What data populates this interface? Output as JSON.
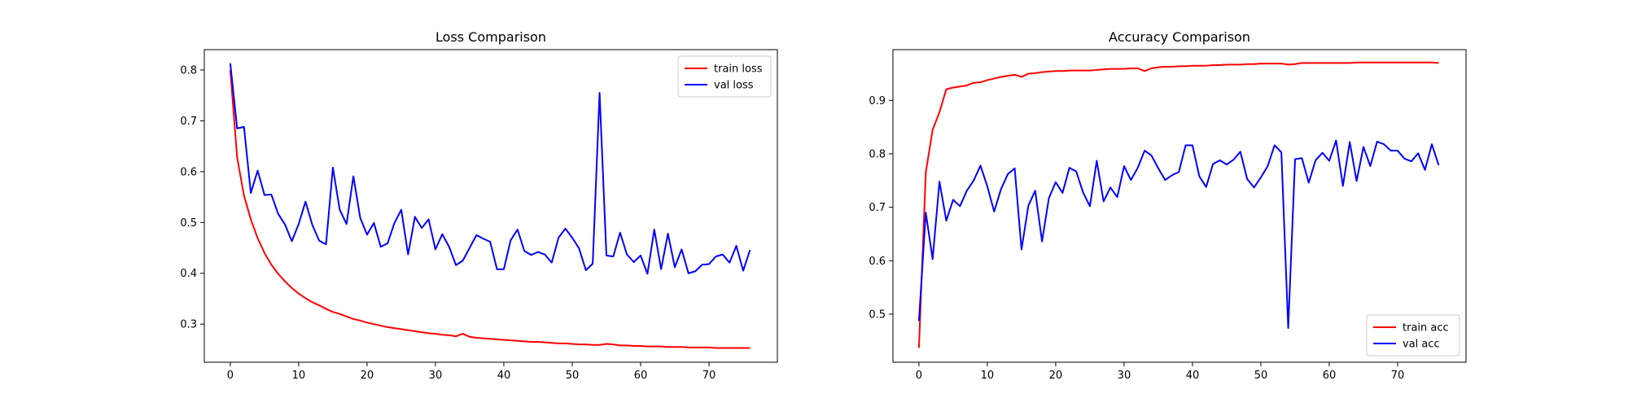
{
  "chart_data": [
    {
      "type": "line",
      "title": "Loss Comparison",
      "xlabel": "",
      "ylabel": "",
      "xlim": [
        -3.8,
        80.0
      ],
      "ylim": [
        0.225,
        0.84
      ],
      "xticks": [
        0,
        10,
        20,
        30,
        40,
        50,
        60,
        70
      ],
      "yticks": [
        0.3,
        0.4,
        0.5,
        0.6,
        0.7,
        0.8
      ],
      "tick_decimals": 1,
      "legend_position": "upper right",
      "grid": false,
      "series": [
        {
          "name": "train loss",
          "color": "#ff0000",
          "values": [
            0.8,
            0.628,
            0.553,
            0.506,
            0.469,
            0.44,
            0.417,
            0.399,
            0.384,
            0.371,
            0.36,
            0.351,
            0.343,
            0.337,
            0.33,
            0.324,
            0.32,
            0.315,
            0.31,
            0.307,
            0.303,
            0.3,
            0.297,
            0.294,
            0.292,
            0.29,
            0.288,
            0.286,
            0.284,
            0.282,
            0.281,
            0.279,
            0.278,
            0.276,
            0.281,
            0.275,
            0.273,
            0.272,
            0.271,
            0.27,
            0.269,
            0.268,
            0.267,
            0.266,
            0.265,
            0.265,
            0.264,
            0.263,
            0.262,
            0.262,
            0.261,
            0.26,
            0.26,
            0.259,
            0.259,
            0.261,
            0.26,
            0.258,
            0.258,
            0.257,
            0.257,
            0.256,
            0.256,
            0.256,
            0.255,
            0.255,
            0.255,
            0.254,
            0.254,
            0.254,
            0.254,
            0.253,
            0.253,
            0.253,
            0.253,
            0.253,
            0.253
          ]
        },
        {
          "name": "val loss",
          "color": "#0000ff",
          "values": [
            0.813,
            0.685,
            0.688,
            0.558,
            0.602,
            0.554,
            0.555,
            0.517,
            0.496,
            0.463,
            0.497,
            0.541,
            0.495,
            0.464,
            0.457,
            0.608,
            0.525,
            0.497,
            0.591,
            0.509,
            0.476,
            0.499,
            0.452,
            0.459,
            0.499,
            0.525,
            0.437,
            0.511,
            0.489,
            0.506,
            0.447,
            0.477,
            0.452,
            0.416,
            0.425,
            0.45,
            0.475,
            0.468,
            0.462,
            0.408,
            0.408,
            0.465,
            0.486,
            0.444,
            0.436,
            0.442,
            0.437,
            0.421,
            0.47,
            0.488,
            0.47,
            0.449,
            0.406,
            0.419,
            0.755,
            0.435,
            0.433,
            0.48,
            0.437,
            0.422,
            0.435,
            0.399,
            0.486,
            0.408,
            0.478,
            0.412,
            0.447,
            0.4,
            0.404,
            0.417,
            0.418,
            0.433,
            0.437,
            0.421,
            0.454,
            0.405,
            0.446
          ]
        }
      ]
    },
    {
      "type": "line",
      "title": "Accuracy Comparison",
      "xlabel": "",
      "ylabel": "",
      "xlim": [
        -3.8,
        80.0
      ],
      "ylim": [
        0.41,
        0.995
      ],
      "xticks": [
        0,
        10,
        20,
        30,
        40,
        50,
        60,
        70
      ],
      "yticks": [
        0.5,
        0.6,
        0.7,
        0.8,
        0.9
      ],
      "tick_decimals": 1,
      "legend_position": "lower right",
      "grid": false,
      "series": [
        {
          "name": "train acc",
          "color": "#ff0000",
          "values": [
            0.437,
            0.765,
            0.845,
            0.878,
            0.921,
            0.924,
            0.926,
            0.928,
            0.933,
            0.934,
            0.938,
            0.941,
            0.944,
            0.946,
            0.948,
            0.944,
            0.95,
            0.951,
            0.953,
            0.954,
            0.955,
            0.955,
            0.956,
            0.956,
            0.956,
            0.956,
            0.957,
            0.958,
            0.959,
            0.959,
            0.959,
            0.96,
            0.96,
            0.955,
            0.96,
            0.962,
            0.963,
            0.963,
            0.964,
            0.964,
            0.965,
            0.965,
            0.965,
            0.966,
            0.966,
            0.967,
            0.967,
            0.967,
            0.968,
            0.968,
            0.969,
            0.969,
            0.969,
            0.969,
            0.967,
            0.968,
            0.97,
            0.97,
            0.97,
            0.97,
            0.97,
            0.97,
            0.97,
            0.97,
            0.971,
            0.971,
            0.971,
            0.971,
            0.971,
            0.971,
            0.971,
            0.971,
            0.971,
            0.971,
            0.971,
            0.971,
            0.97
          ]
        },
        {
          "name": "val acc",
          "color": "#0000ff",
          "values": [
            0.487,
            0.69,
            0.603,
            0.748,
            0.675,
            0.714,
            0.702,
            0.731,
            0.75,
            0.778,
            0.739,
            0.692,
            0.734,
            0.762,
            0.773,
            0.621,
            0.703,
            0.731,
            0.636,
            0.717,
            0.747,
            0.727,
            0.774,
            0.767,
            0.728,
            0.702,
            0.787,
            0.711,
            0.737,
            0.719,
            0.777,
            0.751,
            0.774,
            0.806,
            0.797,
            0.773,
            0.751,
            0.76,
            0.766,
            0.816,
            0.816,
            0.758,
            0.738,
            0.781,
            0.788,
            0.78,
            0.789,
            0.804,
            0.753,
            0.737,
            0.756,
            0.777,
            0.816,
            0.803,
            0.474,
            0.79,
            0.792,
            0.746,
            0.788,
            0.802,
            0.787,
            0.825,
            0.74,
            0.822,
            0.749,
            0.813,
            0.777,
            0.823,
            0.818,
            0.806,
            0.806,
            0.791,
            0.786,
            0.801,
            0.77,
            0.818,
            0.779
          ]
        }
      ]
    }
  ]
}
